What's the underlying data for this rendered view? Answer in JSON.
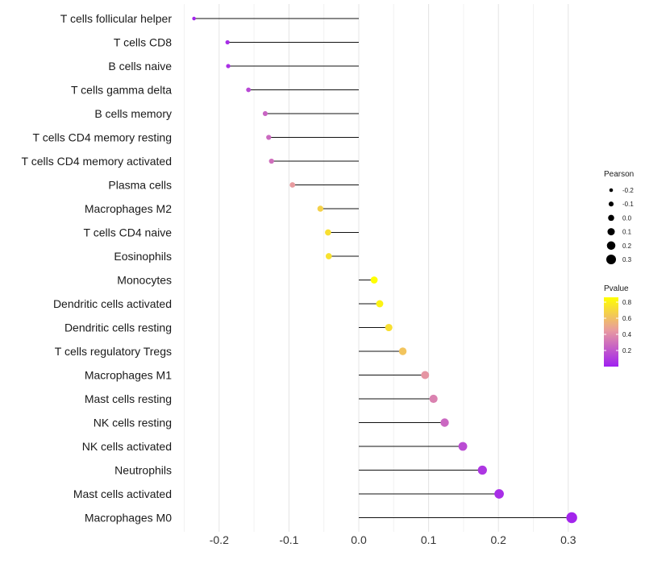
{
  "chart_data": {
    "type": "lollipop",
    "title": "",
    "xlabel": "",
    "ylabel": "",
    "xlim": [
      -0.25,
      0.32
    ],
    "xticks": [
      -0.2,
      -0.1,
      0.0,
      0.1,
      0.2,
      0.3
    ],
    "xtick_labels": [
      "-0.2",
      "-0.1",
      "0.0",
      "0.1",
      "0.2",
      "0.3"
    ],
    "grid": true,
    "legend_position": "right",
    "categories": [
      "T cells follicular helper",
      "T cells CD8",
      "B cells naive",
      "T cells gamma delta",
      "B cells memory",
      "T cells CD4 memory resting",
      "T cells CD4 memory activated",
      "Plasma cells",
      "Macrophages M2",
      "T cells CD4 naive",
      "Eosinophils",
      "Monocytes",
      "Dendritic cells activated",
      "Dendritic cells resting",
      "T cells regulatory  Tregs ",
      "Macrophages M1",
      "Mast cells resting",
      "NK cells resting",
      "NK cells activated",
      "Neutrophils",
      "Mast cells activated",
      "Macrophages M0"
    ],
    "pearson": [
      -0.236,
      -0.188,
      -0.187,
      -0.158,
      -0.134,
      -0.129,
      -0.125,
      -0.095,
      -0.055,
      -0.044,
      -0.043,
      0.022,
      0.03,
      0.043,
      0.063,
      0.095,
      0.107,
      0.123,
      0.149,
      0.177,
      0.201,
      0.305
    ],
    "pvalue": [
      0.02,
      0.05,
      0.06,
      0.15,
      0.25,
      0.27,
      0.29,
      0.45,
      0.67,
      0.73,
      0.74,
      0.86,
      0.81,
      0.73,
      0.62,
      0.43,
      0.36,
      0.26,
      0.16,
      0.08,
      0.05,
      0.02
    ],
    "size_legend": {
      "title": "Pearson",
      "values": [
        -0.2,
        -0.1,
        0.0,
        0.1,
        0.2,
        0.3
      ],
      "labels": [
        "-0.2",
        "-0.1",
        "0.0",
        "0.1",
        "0.2",
        "0.3"
      ]
    },
    "color_legend": {
      "title": "Pvalue",
      "range": [
        0.0,
        0.86
      ],
      "ticks": [
        0.2,
        0.4,
        0.6,
        0.8
      ],
      "labels": [
        "0.2",
        "0.4",
        "0.6",
        "0.8"
      ],
      "low_color": "#a020f0",
      "mid_color": "#e89aa0",
      "high_color": "#ffff00"
    }
  }
}
